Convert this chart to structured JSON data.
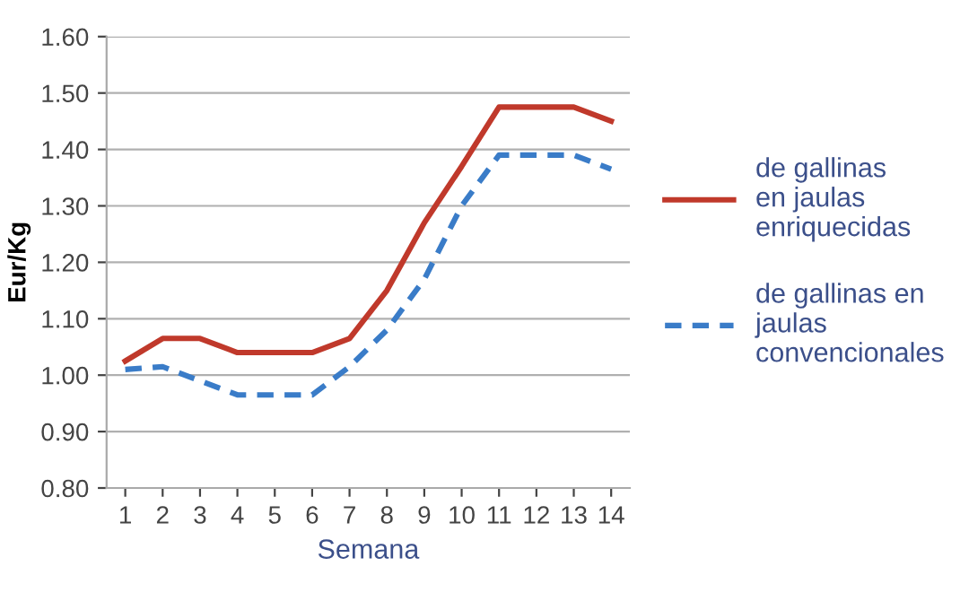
{
  "chart_data": {
    "type": "line",
    "xlabel": "Semana",
    "ylabel": "Eur/Kg",
    "categories": [
      "1",
      "2",
      "3",
      "4",
      "5",
      "6",
      "7",
      "8",
      "9",
      "10",
      "11",
      "12",
      "13",
      "14"
    ],
    "series": [
      {
        "name": "de gallinas\nen jaulas\nenriquecidas",
        "color": "#c0392b",
        "line_style": "solid",
        "values": [
          1.025,
          1.065,
          1.065,
          1.04,
          1.04,
          1.04,
          1.065,
          1.15,
          1.27,
          1.37,
          1.475,
          1.475,
          1.475,
          1.45
        ]
      },
      {
        "name": "de gallinas en\njaulas\nconvencionales",
        "color": "#3a7cc8",
        "line_style": "dashed",
        "values": [
          1.01,
          1.015,
          0.99,
          0.965,
          0.965,
          0.965,
          1.015,
          1.08,
          1.17,
          1.3,
          1.39,
          1.39,
          1.39,
          1.365
        ]
      }
    ],
    "ylim": [
      0.8,
      1.6
    ],
    "yticks": [
      {
        "value": 0.8,
        "label": "0.80"
      },
      {
        "value": 0.9,
        "label": "0.90"
      },
      {
        "value": 1.0,
        "label": "1.00"
      },
      {
        "value": 1.1,
        "label": "1.10"
      },
      {
        "value": 1.2,
        "label": "1.20"
      },
      {
        "value": 1.3,
        "label": "1.30"
      },
      {
        "value": 1.4,
        "label": "1.40"
      },
      {
        "value": 1.5,
        "label": "1.50"
      },
      {
        "value": 1.6,
        "label": "1.60"
      }
    ],
    "grid": "y",
    "legend": "right",
    "marker": "none"
  }
}
